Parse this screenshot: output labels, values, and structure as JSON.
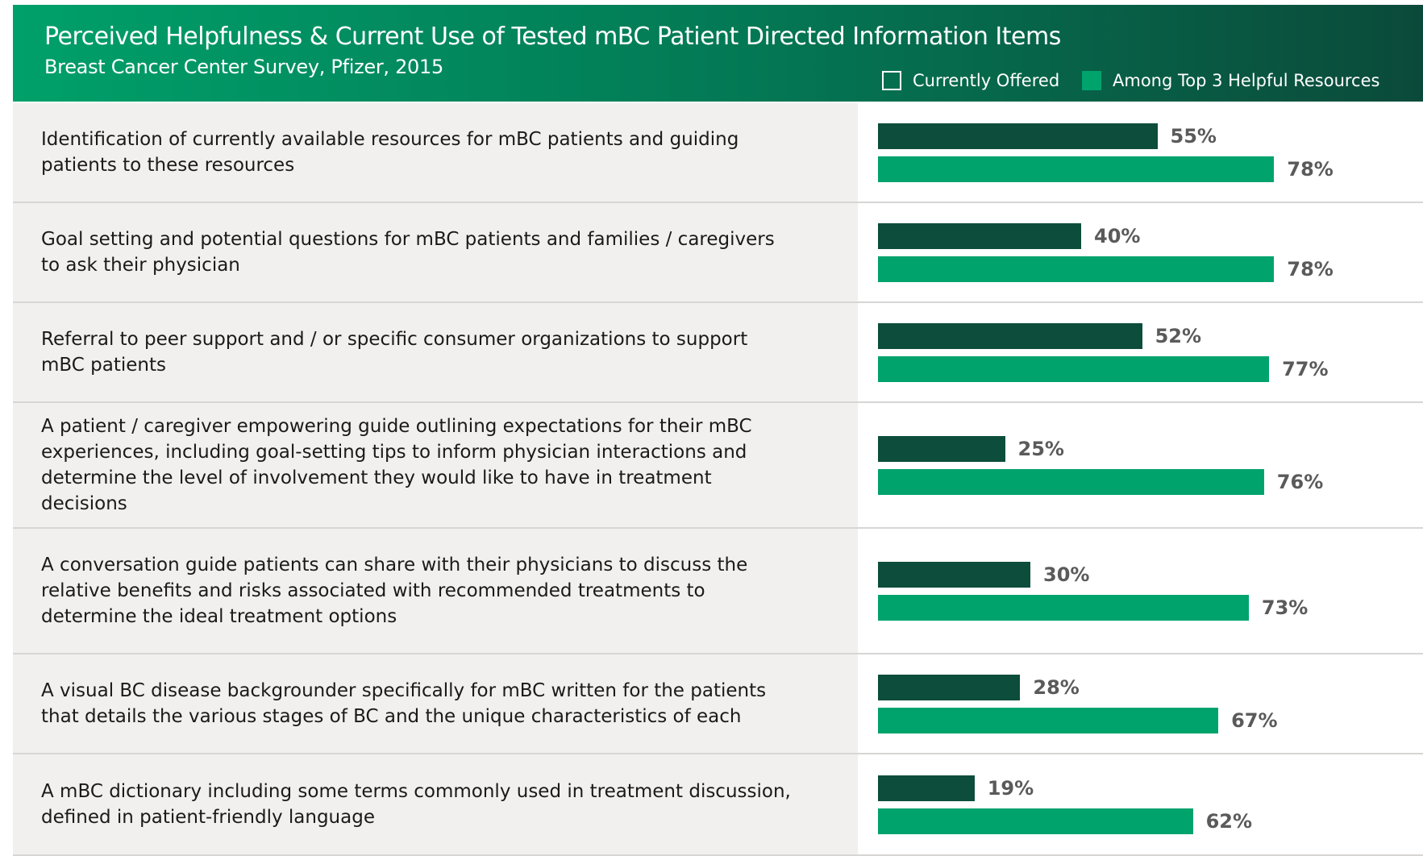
{
  "chart_data": {
    "type": "bar",
    "title": "Perceived Helpfulness & Current Use of Tested mBC Patient Directed Information Items",
    "subtitle": "Breast Cancer Center Survey, Pfizer, 2015",
    "categories": [
      "Identification of currently available resources for mBC patients and guiding patients to these resources",
      "Goal setting and potential questions for mBC patients and families / caregivers to ask their physician",
      "Referral to peer support and / or specific consumer organizations to support mBC patients",
      "A patient / caregiver empowering guide outlining expectations for their mBC experiences, including goal-setting tips to inform physician interactions and determine the level of involvement they would like to have in treatment decisions",
      "A conversation guide patients can share with their physicians to discuss the relative benefits and risks associated with recommended treatments to determine the ideal treatment options",
      "A visual BC disease backgrounder specifically for mBC written for the patients that details the various stages of BC and the unique characteristics of each",
      "A mBC dictionary including some terms commonly used in treatment discussion, defined in patient-friendly language"
    ],
    "series": [
      {
        "name": "Currently Offered",
        "color": "#0c4d3b",
        "values": [
          55,
          40,
          52,
          25,
          30,
          28,
          19
        ],
        "value_labels": [
          "55%",
          "40%",
          "52%",
          "25%",
          "30%",
          "28%",
          "19%"
        ]
      },
      {
        "name": "Among Top 3 Helpful Resources",
        "color": "#00a36c",
        "values": [
          78,
          78,
          77,
          76,
          73,
          67,
          62
        ],
        "value_labels": [
          "78%",
          "78%",
          "77%",
          "76%",
          "73%",
          "67%",
          "62%"
        ]
      }
    ]
  }
}
